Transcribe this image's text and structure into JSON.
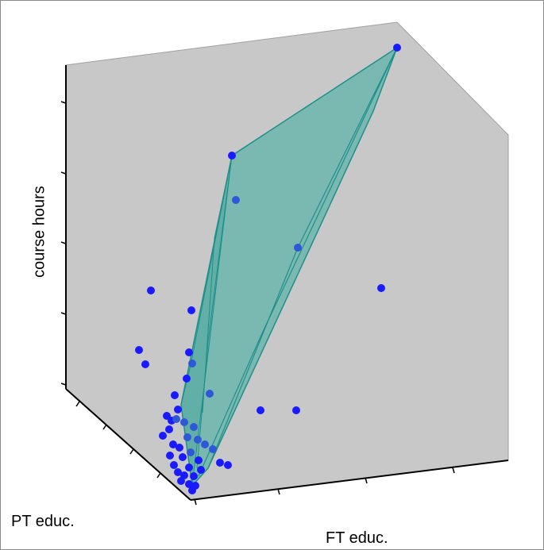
{
  "chart_data": {
    "type": "scatter",
    "projection": "3d",
    "title": "",
    "xlabel": "FT educ.",
    "ylabel": "PT educ.",
    "zlabel": "course hours",
    "grid": false,
    "legend": "none",
    "colors": {
      "background_wall": "#c8c8c8",
      "points": "#1a1aff",
      "hull_fill": "#5fb4aa",
      "hull_edge": "#1f8f8a",
      "axis": "#000000"
    },
    "series": [
      {
        "name": "",
        "marker": "filled-circle",
        "points": [
          {
            "x": 0.95,
            "y": 0.0,
            "z": 1.0
          },
          {
            "x": 0.3,
            "y": 0.0,
            "z": 0.7
          },
          {
            "x": 0.3,
            "y": 0.02,
            "z": 0.62
          },
          {
            "x": 0.55,
            "y": 0.02,
            "z": 0.55
          },
          {
            "x": 0.9,
            "y": 0.5,
            "z": 0.48
          },
          {
            "x": 0.0,
            "y": 0.3,
            "z": 0.35
          },
          {
            "x": 0.0,
            "y": 0.1,
            "z": 0.3
          },
          {
            "x": 0.0,
            "y": 0.35,
            "z": 0.2
          },
          {
            "x": 0.0,
            "y": 0.33,
            "z": 0.16
          },
          {
            "x": 0.02,
            "y": 0.0,
            "z": 0.22
          },
          {
            "x": 0.02,
            "y": 0.0,
            "z": 0.14
          },
          {
            "x": 0.05,
            "y": 0.0,
            "z": 0.1
          },
          {
            "x": 0.4,
            "y": 0.5,
            "z": 0.05
          },
          {
            "x": 0.6,
            "y": 0.45,
            "z": 0.05
          },
          {
            "x": 0.08,
            "y": 0.05,
            "z": 0.05
          },
          {
            "x": 0.2,
            "y": 0.0,
            "z": 0.02
          },
          {
            "x": 0.25,
            "y": 0.0,
            "z": 0.01
          },
          {
            "x": 0.12,
            "y": 0.02,
            "z": 0.02
          },
          {
            "x": 0.01,
            "y": 0.05,
            "z": 0.03
          },
          {
            "x": 0.02,
            "y": 0.08,
            "z": 0.02
          },
          {
            "x": 0.01,
            "y": 0.03,
            "z": 0.01
          },
          {
            "x": 0.0,
            "y": 0.0,
            "z": 0.0
          }
        ]
      }
    ],
    "convex_hull": true
  }
}
